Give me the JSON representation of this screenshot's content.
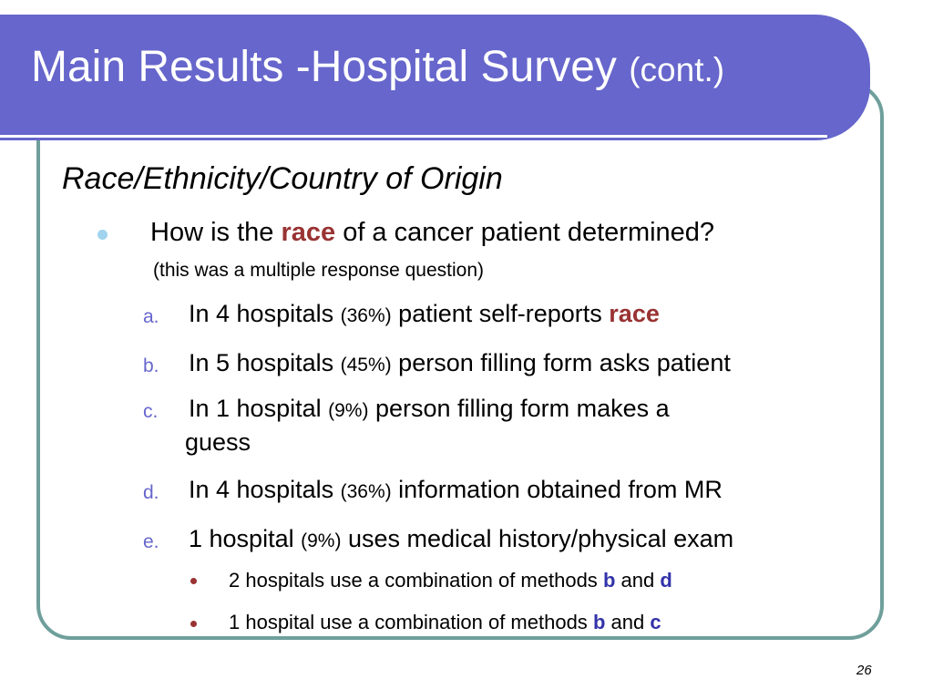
{
  "slide": {
    "title": "Main Results -Hospital Survey",
    "title_suffix": "(cont.)",
    "section_heading": "Race/Ethnicity/Country of Origin",
    "question": {
      "prefix": "How is the",
      "highlight": "race",
      "suffix": "of a cancer patient determined?",
      "note": "(this was a multiple response question)"
    },
    "items": [
      {
        "marker": "a.",
        "lead": "In 4 hospitals",
        "pct": "(36%)",
        "rest": "patient self-reports",
        "highlight": "race"
      },
      {
        "marker": "b.",
        "lead": "In 5 hospitals",
        "pct": "(45%)",
        "rest": "person filling form asks patient"
      },
      {
        "marker": "c.",
        "lead": "In 1 hospital",
        "pct": "(9%)",
        "rest": "person filling form makes a",
        "cont": "guess"
      },
      {
        "marker": "d.",
        "lead": "In 4 hospitals",
        "pct": "(36%)",
        "rest": "information obtained from MR"
      },
      {
        "marker": "e.",
        "lead": "1 hospital",
        "pct": "(9%)",
        "rest": "uses medical history/physical exam"
      }
    ],
    "sub_items": [
      {
        "text": "2 hospitals use a combination of methods",
        "first": "b",
        "joiner": "and",
        "second": "d"
      },
      {
        "text": "1 hospital use a combination of methods",
        "first": "b",
        "joiner": "and",
        "second": "c"
      }
    ],
    "page_number": "26",
    "colors": {
      "title_bar": "#6666cc",
      "frame_border": "#6f9f9b",
      "highlight": "#993333",
      "marker": "#6666cc",
      "bullet": "#9fd3ee",
      "letter_ref": "#3333aa"
    }
  }
}
